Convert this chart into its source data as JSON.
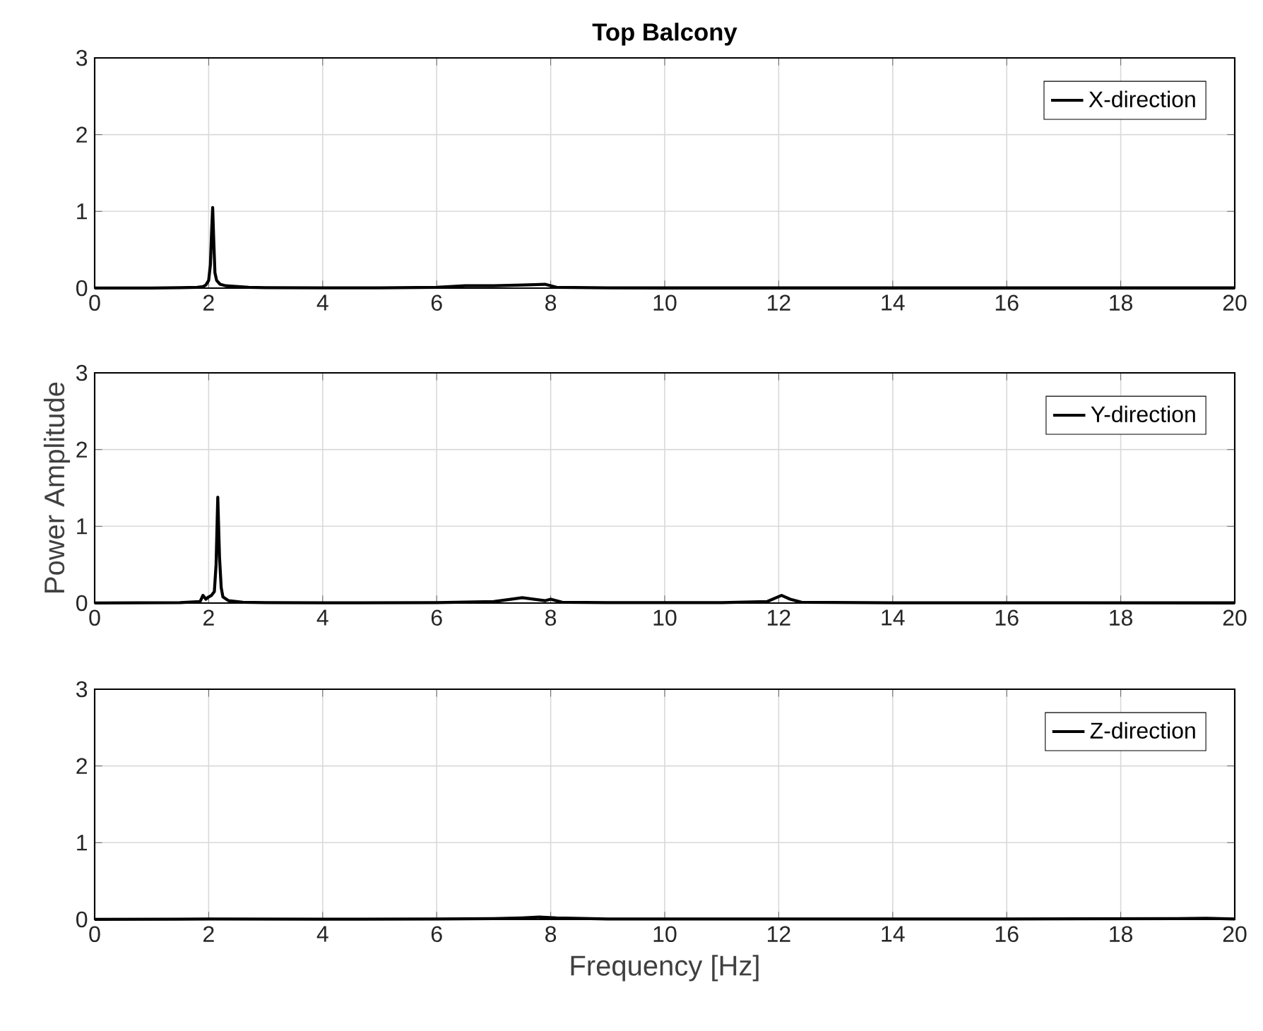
{
  "chart_data": [
    {
      "type": "line",
      "title": "Top Balcony",
      "xlim": [
        0,
        20
      ],
      "ylim": [
        0,
        3
      ],
      "xticks": [
        0,
        2,
        4,
        6,
        8,
        10,
        12,
        14,
        16,
        18,
        20
      ],
      "yticks": [
        0,
        1,
        2,
        3
      ],
      "grid": true,
      "legend": "top right",
      "series": [
        {
          "name": "X-direction",
          "color": "#000000",
          "x": [
            0,
            0.5,
            1,
            1.5,
            1.8,
            1.9,
            1.95,
            2.0,
            2.03,
            2.05,
            2.07,
            2.09,
            2.11,
            2.14,
            2.2,
            2.3,
            2.5,
            2.7,
            3,
            4,
            5,
            6,
            6.5,
            7,
            7.5,
            7.9,
            8.1,
            9,
            10,
            12,
            14,
            16,
            18,
            20
          ],
          "values": [
            0,
            0,
            0,
            0.005,
            0.01,
            0.02,
            0.04,
            0.1,
            0.3,
            0.7,
            1.05,
            0.6,
            0.2,
            0.1,
            0.05,
            0.03,
            0.02,
            0.01,
            0.005,
            0.003,
            0.003,
            0.01,
            0.03,
            0.03,
            0.04,
            0.05,
            0.01,
            0.003,
            0.002,
            0.002,
            0.002,
            0.002,
            0.002,
            0.002
          ]
        }
      ]
    },
    {
      "type": "line",
      "ylabel": "Power Amplitude",
      "xlim": [
        0,
        20
      ],
      "ylim": [
        0,
        3
      ],
      "xticks": [
        0,
        2,
        4,
        6,
        8,
        10,
        12,
        14,
        16,
        18,
        20
      ],
      "yticks": [
        0,
        1,
        2,
        3
      ],
      "grid": true,
      "legend": "top right",
      "series": [
        {
          "name": "Y-direction",
          "color": "#000000",
          "x": [
            0,
            1.5,
            1.85,
            1.9,
            1.95,
            2.0,
            2.05,
            2.1,
            2.13,
            2.16,
            2.19,
            2.22,
            2.25,
            2.35,
            2.6,
            3,
            4,
            6,
            7,
            7.3,
            7.5,
            7.7,
            7.9,
            8.0,
            8.2,
            9,
            11,
            11.8,
            12.05,
            12.2,
            12.4,
            14,
            20
          ],
          "values": [
            0,
            0.005,
            0.02,
            0.1,
            0.05,
            0.08,
            0.1,
            0.15,
            0.5,
            1.38,
            0.6,
            0.2,
            0.08,
            0.03,
            0.01,
            0.005,
            0.003,
            0.005,
            0.02,
            0.05,
            0.07,
            0.05,
            0.03,
            0.05,
            0.01,
            0.005,
            0.005,
            0.02,
            0.1,
            0.05,
            0.01,
            0.003,
            0.002
          ]
        }
      ]
    },
    {
      "type": "line",
      "xlabel": "Frequency [Hz]",
      "xlim": [
        0,
        20
      ],
      "ylim": [
        0,
        3
      ],
      "xticks": [
        0,
        2,
        4,
        6,
        8,
        10,
        12,
        14,
        16,
        18,
        20
      ],
      "yticks": [
        0,
        1,
        2,
        3
      ],
      "grid": true,
      "legend": "top right",
      "series": [
        {
          "name": "Z-direction",
          "color": "#000000",
          "x": [
            0,
            2,
            4,
            6,
            7,
            7.5,
            7.8,
            8.1,
            9,
            12,
            16,
            19,
            19.5,
            20
          ],
          "values": [
            0,
            0.005,
            0.003,
            0.005,
            0.01,
            0.02,
            0.03,
            0.02,
            0.005,
            0.005,
            0.005,
            0.01,
            0.015,
            0.005
          ]
        }
      ]
    }
  ]
}
